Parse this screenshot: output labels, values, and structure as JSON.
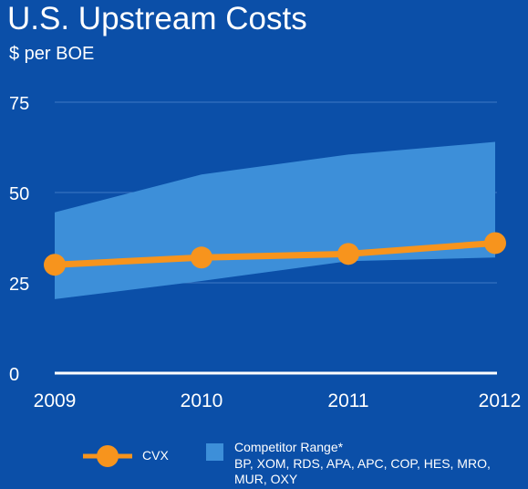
{
  "chart_data": {
    "type": "line",
    "title": "U.S. Upstream Costs",
    "subtitle": "$ per BOE",
    "x": [
      "2009",
      "2010",
      "2011",
      "2012"
    ],
    "ylim": [
      0,
      75
    ],
    "yticks": [
      0,
      25,
      50,
      75
    ],
    "grid": true,
    "legend_position": "bottom",
    "series": [
      {
        "name": "CVX",
        "values": [
          30,
          32,
          33,
          36
        ],
        "color": "#f7941d"
      }
    ],
    "range": {
      "name": "Competitor Range*",
      "description": "BP, XOM, RDS, APA, APC, COP, HES, MRO, MUR, OXY",
      "low": [
        20.5,
        25.5,
        31,
        32
      ],
      "high": [
        44.5,
        55,
        60.5,
        64
      ],
      "color": "#3d8fd9"
    },
    "colors": {
      "background": "#0b4fa8",
      "grid": "#3f7ac4",
      "axis": "#ffffff"
    }
  }
}
